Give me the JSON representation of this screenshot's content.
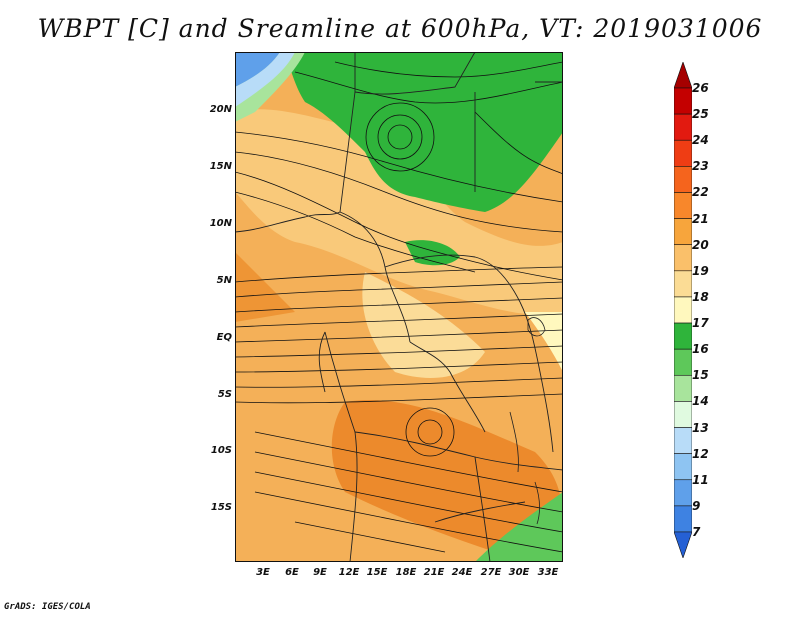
{
  "title": "WBPT [C] and Sreamline at 600hPa, VT: 2019031006",
  "credit": "GrADS: IGES/COLA",
  "lat_labels": [
    "20N",
    "15N",
    "10N",
    "5N",
    "EQ",
    "5S",
    "10S",
    "15S"
  ],
  "lon_labels": [
    "3E",
    "6E",
    "9E",
    "12E",
    "15E",
    "18E",
    "21E",
    "24E",
    "27E",
    "30E",
    "33E"
  ],
  "colorbar": {
    "labels": [
      "26",
      "25",
      "24",
      "23",
      "22",
      "21",
      "20",
      "19",
      "18",
      "17",
      "16",
      "15",
      "14",
      "13",
      "12",
      "11",
      "9",
      "7"
    ],
    "colors": [
      "#a50000",
      "#c40000",
      "#e21a10",
      "#ef3d14",
      "#f5641d",
      "#f8872b",
      "#f7a53c",
      "#fac06a",
      "#fbdc95",
      "#fff8be",
      "#2fb43b",
      "#5ec85a",
      "#a8e49c",
      "#e0fae0",
      "#b8dcf8",
      "#8ec4f2",
      "#5fa0ea",
      "#3e82e2",
      "#2560d4"
    ]
  }
}
